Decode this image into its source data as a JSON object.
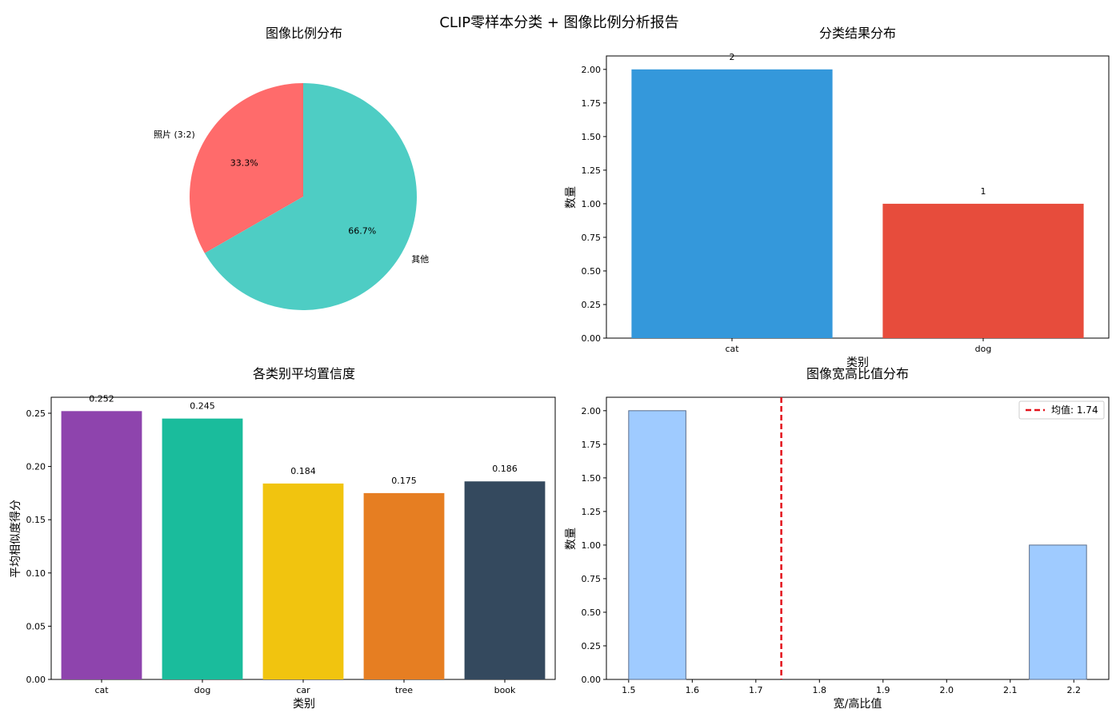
{
  "figure": {
    "title": "CLIP零样本分类 + 图像比例分析报告"
  },
  "chart_data": [
    {
      "type": "pie",
      "title": "图像比例分布",
      "labels": [
        "照片 (3:2)",
        "其他"
      ],
      "values": [
        33.3,
        66.7
      ],
      "pct_labels": [
        "33.3%",
        "66.7%"
      ],
      "colors": [
        "#ff6b6b",
        "#4ecdc4"
      ]
    },
    {
      "type": "bar",
      "title": "分类结果分布",
      "categories": [
        "cat",
        "dog"
      ],
      "values": [
        2,
        1
      ],
      "value_labels": [
        "2",
        "1"
      ],
      "colors": [
        "#3498db",
        "#e74c3c"
      ],
      "xlabel": "类别",
      "ylabel": "数量",
      "ylim": [
        0,
        2.1
      ],
      "yticks": [
        0.0,
        0.25,
        0.5,
        0.75,
        1.0,
        1.25,
        1.5,
        1.75,
        2.0
      ],
      "ytick_labels": [
        "0.00",
        "0.25",
        "0.50",
        "0.75",
        "1.00",
        "1.25",
        "1.50",
        "1.75",
        "2.00"
      ]
    },
    {
      "type": "bar",
      "title": "各类别平均置信度",
      "categories": [
        "cat",
        "dog",
        "car",
        "tree",
        "book"
      ],
      "values": [
        0.252,
        0.245,
        0.184,
        0.175,
        0.186
      ],
      "value_labels": [
        "0.252",
        "0.245",
        "0.184",
        "0.175",
        "0.186"
      ],
      "colors": [
        "#8e44ad",
        "#1abc9c",
        "#f1c40f",
        "#e67e22",
        "#34495e"
      ],
      "xlabel": "类别",
      "ylabel": "平均相似度得分",
      "ylim": [
        0,
        0.265
      ],
      "yticks": [
        0.0,
        0.05,
        0.1,
        0.15,
        0.2,
        0.25
      ],
      "ytick_labels": [
        "0.00",
        "0.05",
        "0.10",
        "0.15",
        "0.20",
        "0.25"
      ]
    },
    {
      "type": "bar",
      "subtype": "histogram",
      "title": "图像宽高比值分布",
      "bins": [
        {
          "start": 1.5,
          "end": 1.59,
          "count": 2
        },
        {
          "start": 2.13,
          "end": 2.22,
          "count": 1
        }
      ],
      "bar_color": "#9fcbff",
      "edge_color": "#5a6e8c",
      "mean_value": 1.74,
      "mean_color": "#e3121b",
      "legend_label": "均值: 1.74",
      "legend_position": "top-right",
      "xlabel": "宽/高比值",
      "ylabel": "数量",
      "xlim": [
        1.465,
        2.255
      ],
      "ylim": [
        0,
        2.1
      ],
      "xticks": [
        1.5,
        1.6,
        1.7,
        1.8,
        1.9,
        2.0,
        2.1,
        2.2
      ],
      "xtick_labels": [
        "1.5",
        "1.6",
        "1.7",
        "1.8",
        "1.9",
        "2.0",
        "2.1",
        "2.2"
      ],
      "yticks": [
        0.0,
        0.25,
        0.5,
        0.75,
        1.0,
        1.25,
        1.5,
        1.75,
        2.0
      ],
      "ytick_labels": [
        "0.00",
        "0.25",
        "0.50",
        "0.75",
        "1.00",
        "1.25",
        "1.50",
        "1.75",
        "2.00"
      ]
    }
  ]
}
